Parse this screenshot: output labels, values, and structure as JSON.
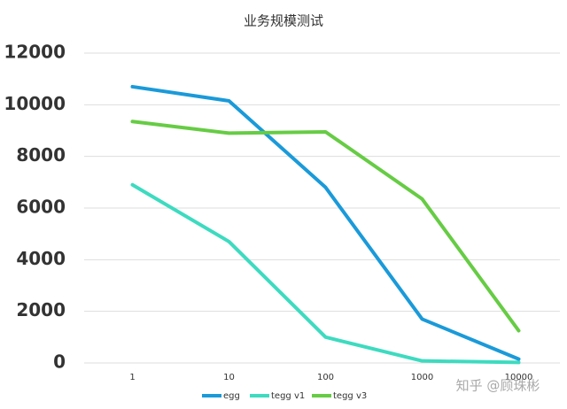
{
  "chart_data": {
    "type": "line",
    "title": "业务规模测试",
    "categories": [
      "1",
      "10",
      "100",
      "1000",
      "10000"
    ],
    "series": [
      {
        "name": "egg",
        "color": "#1a9ad9",
        "values": [
          10700,
          10150,
          6800,
          1700,
          150
        ]
      },
      {
        "name": "tegg v1",
        "color": "#3ddbc0",
        "values": [
          6900,
          4700,
          1000,
          80,
          20
        ]
      },
      {
        "name": "tegg v3",
        "color": "#66cc44",
        "values": [
          9350,
          8900,
          8950,
          6350,
          1250
        ]
      }
    ],
    "ylim": [
      0,
      12000
    ],
    "yticks": [
      0,
      2000,
      4000,
      6000,
      8000,
      10000,
      12000
    ],
    "grid": true,
    "legend": "bottom",
    "watermark": "知乎 @顾珠彬"
  }
}
